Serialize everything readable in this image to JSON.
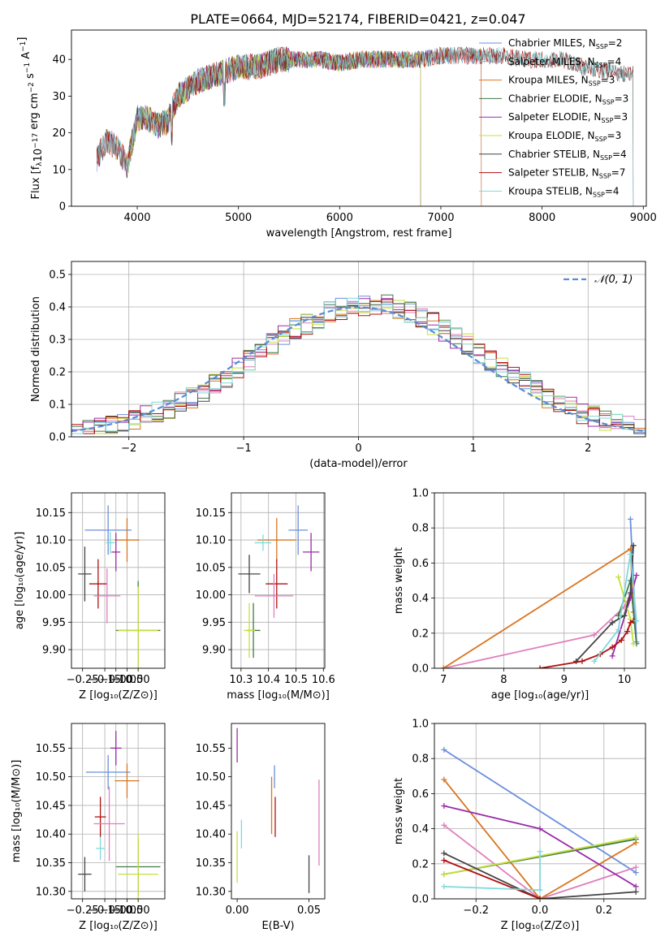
{
  "figure_title": "PLATE=0664, MJD=52174, FIBERID=0421, z=0.047",
  "colors": {
    "Chabrier MILES": "#6a8fdc",
    "Salpeter MILES": "#e07fbc",
    "Kroupa MILES": "#d9751f",
    "Chabrier ELODIE": "#3f7a4a",
    "Salpeter ELODIE": "#9a2ba8",
    "Kroupa ELODIE": "#c6e03a",
    "Chabrier STELIB": "#444444",
    "Salpeter STELIB": "#b01010",
    "Kroupa STELIB": "#7fd8dc",
    "normal": "#5b8ad6"
  },
  "chart_data": [
    {
      "id": "spectrum",
      "type": "line",
      "title": "PLATE=0664, MJD=52174, FIBERID=0421, z=0.047",
      "xlabel": "wavelength [Angstrom, rest frame]",
      "ylabel": "Flux [f_λ 10^-17 erg cm^-2 s^-1 A^-1]",
      "xlim": [
        3350,
        9030
      ],
      "ylim": [
        0,
        48
      ],
      "xticks": [
        4000,
        5000,
        6000,
        7000,
        8000,
        9000
      ],
      "yticks": [
        0,
        10,
        20,
        30,
        40
      ],
      "legend_position": "right",
      "series": [
        {
          "name": "Chabrier MILES",
          "label": "Chabrier MILES, N_SSP=2",
          "wave_range": [
            3600,
            7400
          ]
        },
        {
          "name": "Salpeter MILES",
          "label": "Salpeter MILES, N_SSP=4",
          "wave_range": [
            3600,
            7400
          ]
        },
        {
          "name": "Kroupa MILES",
          "label": "Kroupa MILES, N_SSP=3",
          "wave_range": [
            3600,
            7400
          ]
        },
        {
          "name": "Chabrier ELODIE",
          "label": "Chabrier ELODIE, N_SSP=3",
          "wave_range": [
            3900,
            6800
          ]
        },
        {
          "name": "Salpeter ELODIE",
          "label": "Salpeter ELODIE, N_SSP=3",
          "wave_range": [
            3900,
            6800
          ]
        },
        {
          "name": "Kroupa ELODIE",
          "label": "Kroupa ELODIE, N_SSP=3",
          "wave_range": [
            3900,
            6800
          ]
        },
        {
          "name": "Chabrier STELIB",
          "label": "Chabrier STELIB, N_SSP=4",
          "wave_range": [
            3600,
            8900
          ]
        },
        {
          "name": "Salpeter STELIB",
          "label": "Salpeter STELIB, N_SSP=7",
          "wave_range": [
            3600,
            8900
          ]
        },
        {
          "name": "Kroupa STELIB",
          "label": "Kroupa STELIB, N_SSP=4",
          "wave_range": [
            3600,
            8900
          ]
        }
      ],
      "continuum": {
        "wavelength": [
          3600,
          3700,
          3800,
          3900,
          4000,
          4100,
          4200,
          4300,
          4400,
          4500,
          4600,
          4800,
          5000,
          5200,
          5400,
          5600,
          5800,
          6000,
          6200,
          6400,
          6600,
          6800,
          7000,
          7200,
          7400,
          7600,
          7800,
          8000,
          8200,
          8400,
          8600,
          8800,
          8900
        ],
        "flux": [
          13,
          18,
          16,
          11,
          24,
          24,
          22,
          23,
          30,
          32,
          34,
          36,
          38,
          38,
          40,
          40,
          40,
          39,
          40,
          40,
          40,
          40,
          41,
          41,
          41,
          41,
          40,
          40,
          40,
          38,
          37,
          36,
          36
        ]
      }
    },
    {
      "id": "residuals",
      "type": "histogram",
      "xlabel": "(data-model)/error",
      "ylabel": "Normed distribution",
      "xlim": [
        -2.5,
        2.5
      ],
      "ylim": [
        0,
        0.54
      ],
      "xticks": [
        -2,
        -1,
        0,
        1,
        2
      ],
      "yticks": [
        0.0,
        0.1,
        0.2,
        0.3,
        0.4,
        0.5
      ],
      "grid": true,
      "bin_width": 0.1,
      "legend": [
        {
          "label": "𝒩(0, 1)",
          "style": "dashed"
        }
      ],
      "legend_position": "upper right",
      "reference_curve": "standard normal pdf"
    },
    {
      "id": "age_vs_Z",
      "type": "errorbar",
      "xlabel": "Z [log10(Z/Z⊙)]",
      "ylabel": "age [log10(age/yr)]",
      "xlim": [
        -0.3,
        0.12
      ],
      "ylim": [
        9.866,
        10.186
      ],
      "xticks": [
        -0.25,
        -0.15,
        -0.1,
        -0.05,
        0.0
      ],
      "xtick_labels": [
        "−0.25",
        "−0.15",
        "−0.10",
        "−0.05",
        "0.00"
      ],
      "yticks": [
        9.9,
        9.95,
        10.0,
        10.05,
        10.1,
        10.15
      ],
      "grid": true,
      "points": [
        {
          "series": "Chabrier MILES",
          "x": -0.135,
          "y": 10.118,
          "xerr": 0.105,
          "yerr": 0.045
        },
        {
          "series": "Kroupa MILES",
          "x": -0.05,
          "y": 10.1,
          "xerr": 0.055,
          "yerr": 0.04
        },
        {
          "series": "Kroupa STELIB",
          "x": -0.125,
          "y": 10.095,
          "xerr": 0.02,
          "yerr": 0.02
        },
        {
          "series": "Salpeter ELODIE",
          "x": -0.1,
          "y": 10.078,
          "xerr": 0.02,
          "yerr": 0.035
        },
        {
          "series": "Chabrier STELIB",
          "x": -0.24,
          "y": 10.038,
          "xerr": 0.03,
          "yerr": 0.05
        },
        {
          "series": "Salpeter STELIB",
          "x": -0.18,
          "y": 10.02,
          "xerr": 0.04,
          "yerr": 0.045
        },
        {
          "series": "Salpeter MILES",
          "x": -0.14,
          "y": 9.998,
          "xerr": 0.06,
          "yerr": 0.05
        },
        {
          "series": "Chabrier ELODIE",
          "x": 0.0,
          "y": 9.935,
          "xerr": 0.1,
          "yerr": 0.09
        },
        {
          "series": "Kroupa ELODIE",
          "x": 0.0,
          "y": 9.935,
          "xerr": 0.09,
          "yerr": 0.08
        }
      ]
    },
    {
      "id": "age_vs_mass",
      "type": "errorbar",
      "xlabel": "mass [log10(M/M⊙)]",
      "ylabel": "",
      "xlim": [
        10.265,
        10.605
      ],
      "ylim": [
        9.866,
        10.186
      ],
      "xticks": [
        10.3,
        10.4,
        10.5,
        10.6
      ],
      "yticks": [
        9.9,
        9.95,
        10.0,
        10.05,
        10.1,
        10.15
      ],
      "grid": true,
      "points": [
        {
          "series": "Chabrier MILES",
          "x": 10.508,
          "y": 10.118,
          "xerr": 0.035,
          "yerr": 0.045
        },
        {
          "series": "Kroupa MILES",
          "x": 10.43,
          "y": 10.1,
          "xerr": 0.07,
          "yerr": 0.04
        },
        {
          "series": "Kroupa STELIB",
          "x": 10.38,
          "y": 10.095,
          "xerr": 0.03,
          "yerr": 0.015
        },
        {
          "series": "Salpeter ELODIE",
          "x": 10.555,
          "y": 10.078,
          "xerr": 0.03,
          "yerr": 0.035
        },
        {
          "series": "Chabrier STELIB",
          "x": 10.33,
          "y": 10.038,
          "xerr": 0.04,
          "yerr": 0.035
        },
        {
          "series": "Salpeter STELIB",
          "x": 10.43,
          "y": 10.02,
          "xerr": 0.04,
          "yerr": 0.045
        },
        {
          "series": "Salpeter MILES",
          "x": 10.42,
          "y": 9.998,
          "xerr": 0.07,
          "yerr": 0.04
        },
        {
          "series": "Chabrier ELODIE",
          "x": 10.345,
          "y": 9.935,
          "xerr": 0.025,
          "yerr": 0.05
        },
        {
          "series": "Kroupa ELODIE",
          "x": 10.33,
          "y": 9.935,
          "xerr": 0.02,
          "yerr": 0.05
        }
      ]
    },
    {
      "id": "weight_vs_age",
      "type": "line",
      "xlabel": "age [log10(age/yr)]",
      "ylabel": "mass weight",
      "xlim": [
        6.85,
        10.35
      ],
      "ylim": [
        0,
        1.0
      ],
      "xticks": [
        7,
        8,
        9,
        10
      ],
      "yticks": [
        0.0,
        0.2,
        0.4,
        0.6,
        0.8,
        1.0
      ],
      "grid": true,
      "series": [
        {
          "name": "Chabrier MILES",
          "x": [
            10.1,
            10.2
          ],
          "y": [
            0.85,
            0.15
          ]
        },
        {
          "name": "Salpeter MILES",
          "x": [
            7.0,
            9.5,
            10.0,
            10.1
          ],
          "y": [
            0.0,
            0.19,
            0.35,
            0.42
          ]
        },
        {
          "name": "Kroupa MILES",
          "x": [
            7.0,
            10.1,
            10.15
          ],
          "y": [
            0.0,
            0.68,
            0.32
          ]
        },
        {
          "name": "Chabrier ELODIE",
          "x": [
            9.9,
            10.1,
            10.2
          ],
          "y": [
            0.3,
            0.5,
            0.14
          ]
        },
        {
          "name": "Salpeter ELODIE",
          "x": [
            9.8,
            10.1,
            10.2
          ],
          "y": [
            0.07,
            0.4,
            0.53
          ]
        },
        {
          "name": "Kroupa ELODIE",
          "x": [
            9.9,
            10.1,
            10.15
          ],
          "y": [
            0.52,
            0.28,
            0.14
          ]
        },
        {
          "name": "Chabrier STELIB",
          "x": [
            9.2,
            9.8,
            10.0,
            10.1,
            10.15
          ],
          "y": [
            0.04,
            0.26,
            0.3,
            0.43,
            0.7
          ]
        },
        {
          "name": "Salpeter STELIB",
          "x": [
            8.6,
            9.3,
            9.6,
            9.8,
            9.95,
            10.05,
            10.1,
            10.15
          ],
          "y": [
            0.0,
            0.04,
            0.08,
            0.12,
            0.16,
            0.21,
            0.26,
            0.27
          ]
        },
        {
          "name": "Kroupa STELIB",
          "x": [
            9.5,
            9.9,
            10.1,
            10.2
          ],
          "y": [
            0.04,
            0.22,
            0.65,
            0.27
          ]
        }
      ]
    },
    {
      "id": "mass_vs_Z",
      "type": "errorbar",
      "xlabel": "Z [log10(Z/Z⊙)]",
      "ylabel": "mass [log10(M/M⊙)]",
      "xlim": [
        -0.3,
        0.12
      ],
      "ylim": [
        10.287,
        10.593
      ],
      "xticks": [
        -0.25,
        -0.15,
        -0.1,
        -0.05,
        0.0
      ],
      "xtick_labels": [
        "−0.25",
        "−0.15",
        "−0.10",
        "−0.05",
        "0.00"
      ],
      "yticks": [
        10.3,
        10.35,
        10.4,
        10.45,
        10.5,
        10.55
      ],
      "grid": true,
      "points": [
        {
          "series": "Salpeter ELODIE",
          "x": -0.1,
          "y": 10.55,
          "xerr": 0.025,
          "yerr": 0.03
        },
        {
          "series": "Chabrier MILES",
          "x": -0.135,
          "y": 10.508,
          "xerr": 0.1,
          "yerr": 0.03
        },
        {
          "series": "Kroupa MILES",
          "x": -0.05,
          "y": 10.493,
          "xerr": 0.055,
          "yerr": 0.03
        },
        {
          "series": "Salpeter STELIB",
          "x": -0.17,
          "y": 10.43,
          "xerr": 0.025,
          "yerr": 0.035
        },
        {
          "series": "Salpeter MILES",
          "x": -0.13,
          "y": 10.418,
          "xerr": 0.07,
          "yerr": 0.065
        },
        {
          "series": "Kroupa STELIB",
          "x": -0.17,
          "y": 10.375,
          "xerr": 0.02,
          "yerr": 0.02
        },
        {
          "series": "Chabrier STELIB",
          "x": -0.24,
          "y": 10.33,
          "xerr": 0.03,
          "yerr": 0.03
        },
        {
          "series": "Chabrier ELODIE",
          "x": 0.0,
          "y": 10.343,
          "xerr": 0.1,
          "yerr": 0.05
        },
        {
          "series": "Kroupa ELODIE",
          "x": 0.0,
          "y": 10.33,
          "xerr": 0.09,
          "yerr": 0.07
        }
      ]
    },
    {
      "id": "mass_vs_EBV",
      "type": "errorbar",
      "xlabel": "E(B-V)",
      "ylabel": "",
      "xlim": [
        -0.004,
        0.061
      ],
      "ylim": [
        10.287,
        10.593
      ],
      "xticks": [
        0.0,
        0.05
      ],
      "xtick_labels": [
        "0.00",
        "0.05"
      ],
      "yticks": [
        10.3,
        10.35,
        10.4,
        10.45,
        10.5,
        10.55
      ],
      "grid": false,
      "points": [
        {
          "series": "Salpeter ELODIE",
          "x": 0.0,
          "y": 10.555,
          "xerr": 0,
          "yerr": 0.03
        },
        {
          "series": "Chabrier MILES",
          "x": 0.026,
          "y": 10.5,
          "xerr": 0,
          "yerr": 0.02
        },
        {
          "series": "Kroupa MILES",
          "x": 0.024,
          "y": 10.45,
          "xerr": 0,
          "yerr": 0.05
        },
        {
          "series": "Salpeter STELIB",
          "x": 0.0265,
          "y": 10.43,
          "xerr": 0,
          "yerr": 0.035
        },
        {
          "series": "Salpeter MILES",
          "x": 0.057,
          "y": 10.42,
          "xerr": 0,
          "yerr": 0.075
        },
        {
          "series": "Kroupa STELIB",
          "x": 0.003,
          "y": 10.4,
          "xerr": 0,
          "yerr": 0.025
        },
        {
          "series": "Kroupa ELODIE",
          "x": 0.0,
          "y": 10.36,
          "xerr": 0,
          "yerr": 0.045
        },
        {
          "series": "Chabrier STELIB",
          "x": 0.05,
          "y": 10.33,
          "xerr": 0,
          "yerr": 0.033
        }
      ]
    },
    {
      "id": "weight_vs_Z",
      "type": "line",
      "xlabel": "Z [log10(Z/Z⊙)]",
      "ylabel": "mass weight",
      "xlim": [
        -0.33,
        0.33
      ],
      "ylim": [
        0,
        1.0
      ],
      "xticks": [
        -0.2,
        0.0,
        0.2
      ],
      "xtick_labels": [
        "−0.2",
        "0.0",
        "0.2"
      ],
      "yticks": [
        0.0,
        0.2,
        0.4,
        0.6,
        0.8,
        1.0
      ],
      "grid": true,
      "series": [
        {
          "name": "Chabrier MILES",
          "x": [
            -0.3,
            0.3
          ],
          "y": [
            0.85,
            0.15
          ]
        },
        {
          "name": "Salpeter MILES",
          "x": [
            -0.3,
            0.0,
            0.3
          ],
          "y": [
            0.42,
            0.0,
            0.18
          ]
        },
        {
          "name": "Kroupa MILES",
          "x": [
            -0.3,
            0.0,
            0.3
          ],
          "y": [
            0.68,
            0.0,
            0.32
          ]
        },
        {
          "name": "Chabrier ELODIE",
          "x": [
            -0.3,
            0.3
          ],
          "y": [
            0.14,
            0.34
          ]
        },
        {
          "name": "Salpeter ELODIE",
          "x": [
            -0.3,
            0.0,
            0.3
          ],
          "y": [
            0.53,
            0.4,
            0.07
          ]
        },
        {
          "name": "Kroupa ELODIE",
          "x": [
            -0.3,
            0.3
          ],
          "y": [
            0.14,
            0.35
          ]
        },
        {
          "name": "Chabrier STELIB",
          "x": [
            -0.3,
            0.0,
            0.3
          ],
          "y": [
            0.26,
            0.0,
            0.04
          ]
        },
        {
          "name": "Salpeter STELIB",
          "x": [
            -0.3,
            0.0
          ],
          "y": [
            0.22,
            0.0
          ]
        },
        {
          "name": "Kroupa STELIB",
          "x": [
            -0.3,
            0.0,
            0.0
          ],
          "y": [
            0.07,
            0.05,
            0.27
          ]
        }
      ]
    }
  ]
}
